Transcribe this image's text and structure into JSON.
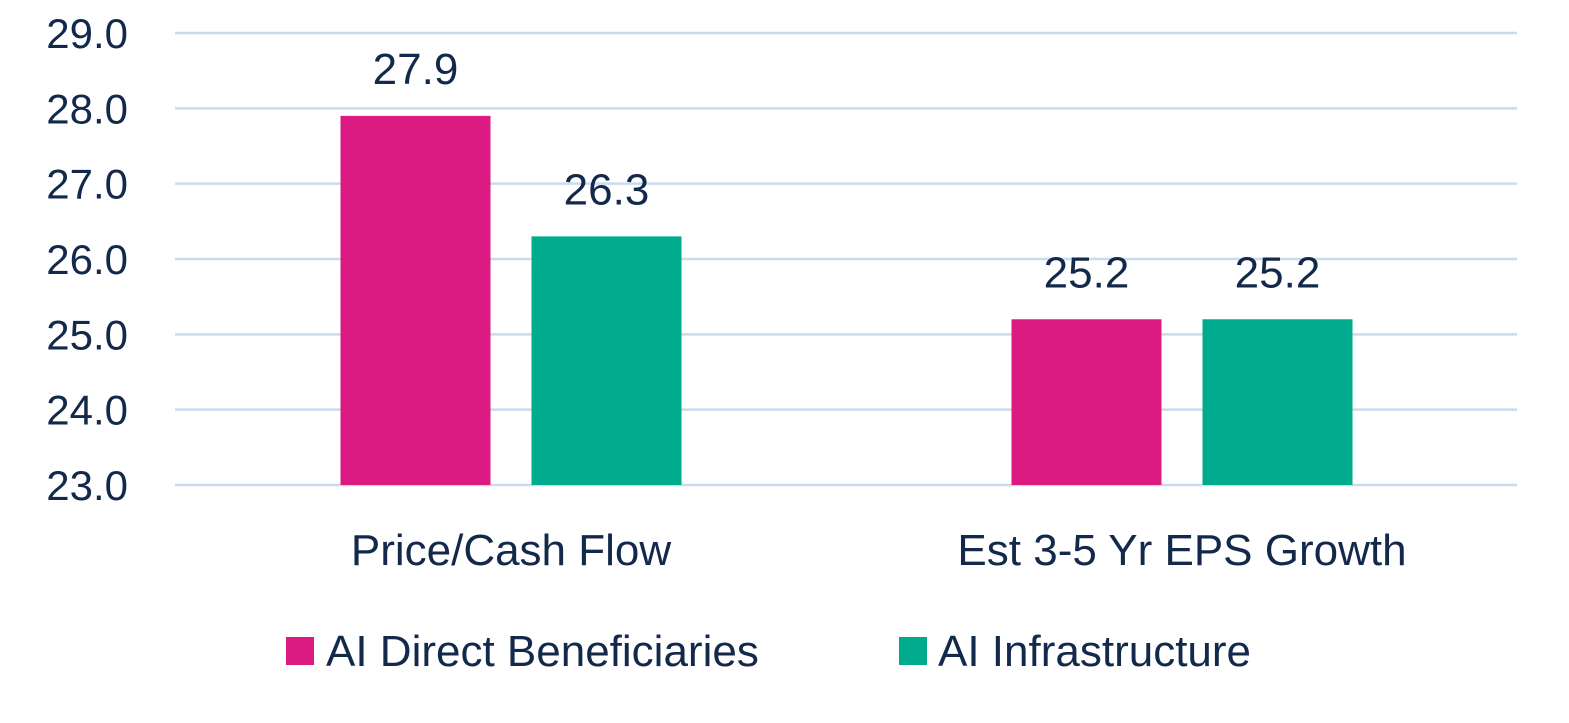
{
  "chart_data": {
    "type": "bar",
    "categories": [
      "Price/Cash Flow",
      "Est 3-5 Yr EPS Growth"
    ],
    "series": [
      {
        "name": "AI Direct Beneficiaries",
        "color": "#db1a82",
        "values": [
          27.9,
          25.2
        ],
        "labels": [
          "27.9",
          "25.2"
        ]
      },
      {
        "name": "AI Infrastructure",
        "color": "#00aa8d",
        "values": [
          26.3,
          25.2
        ],
        "labels": [
          "26.3",
          "25.2"
        ]
      }
    ],
    "ylim": [
      23.0,
      29.0
    ],
    "yticks": [
      23.0,
      24.0,
      25.0,
      26.0,
      27.0,
      28.0,
      29.0
    ],
    "ytick_labels": [
      "23.0",
      "24.0",
      "25.0",
      "26.0",
      "27.0",
      "28.0",
      "29.0"
    ],
    "grid": true,
    "legend": "bottom-center",
    "gridline_color": "#c9dcee",
    "text_color": "#13294b"
  }
}
